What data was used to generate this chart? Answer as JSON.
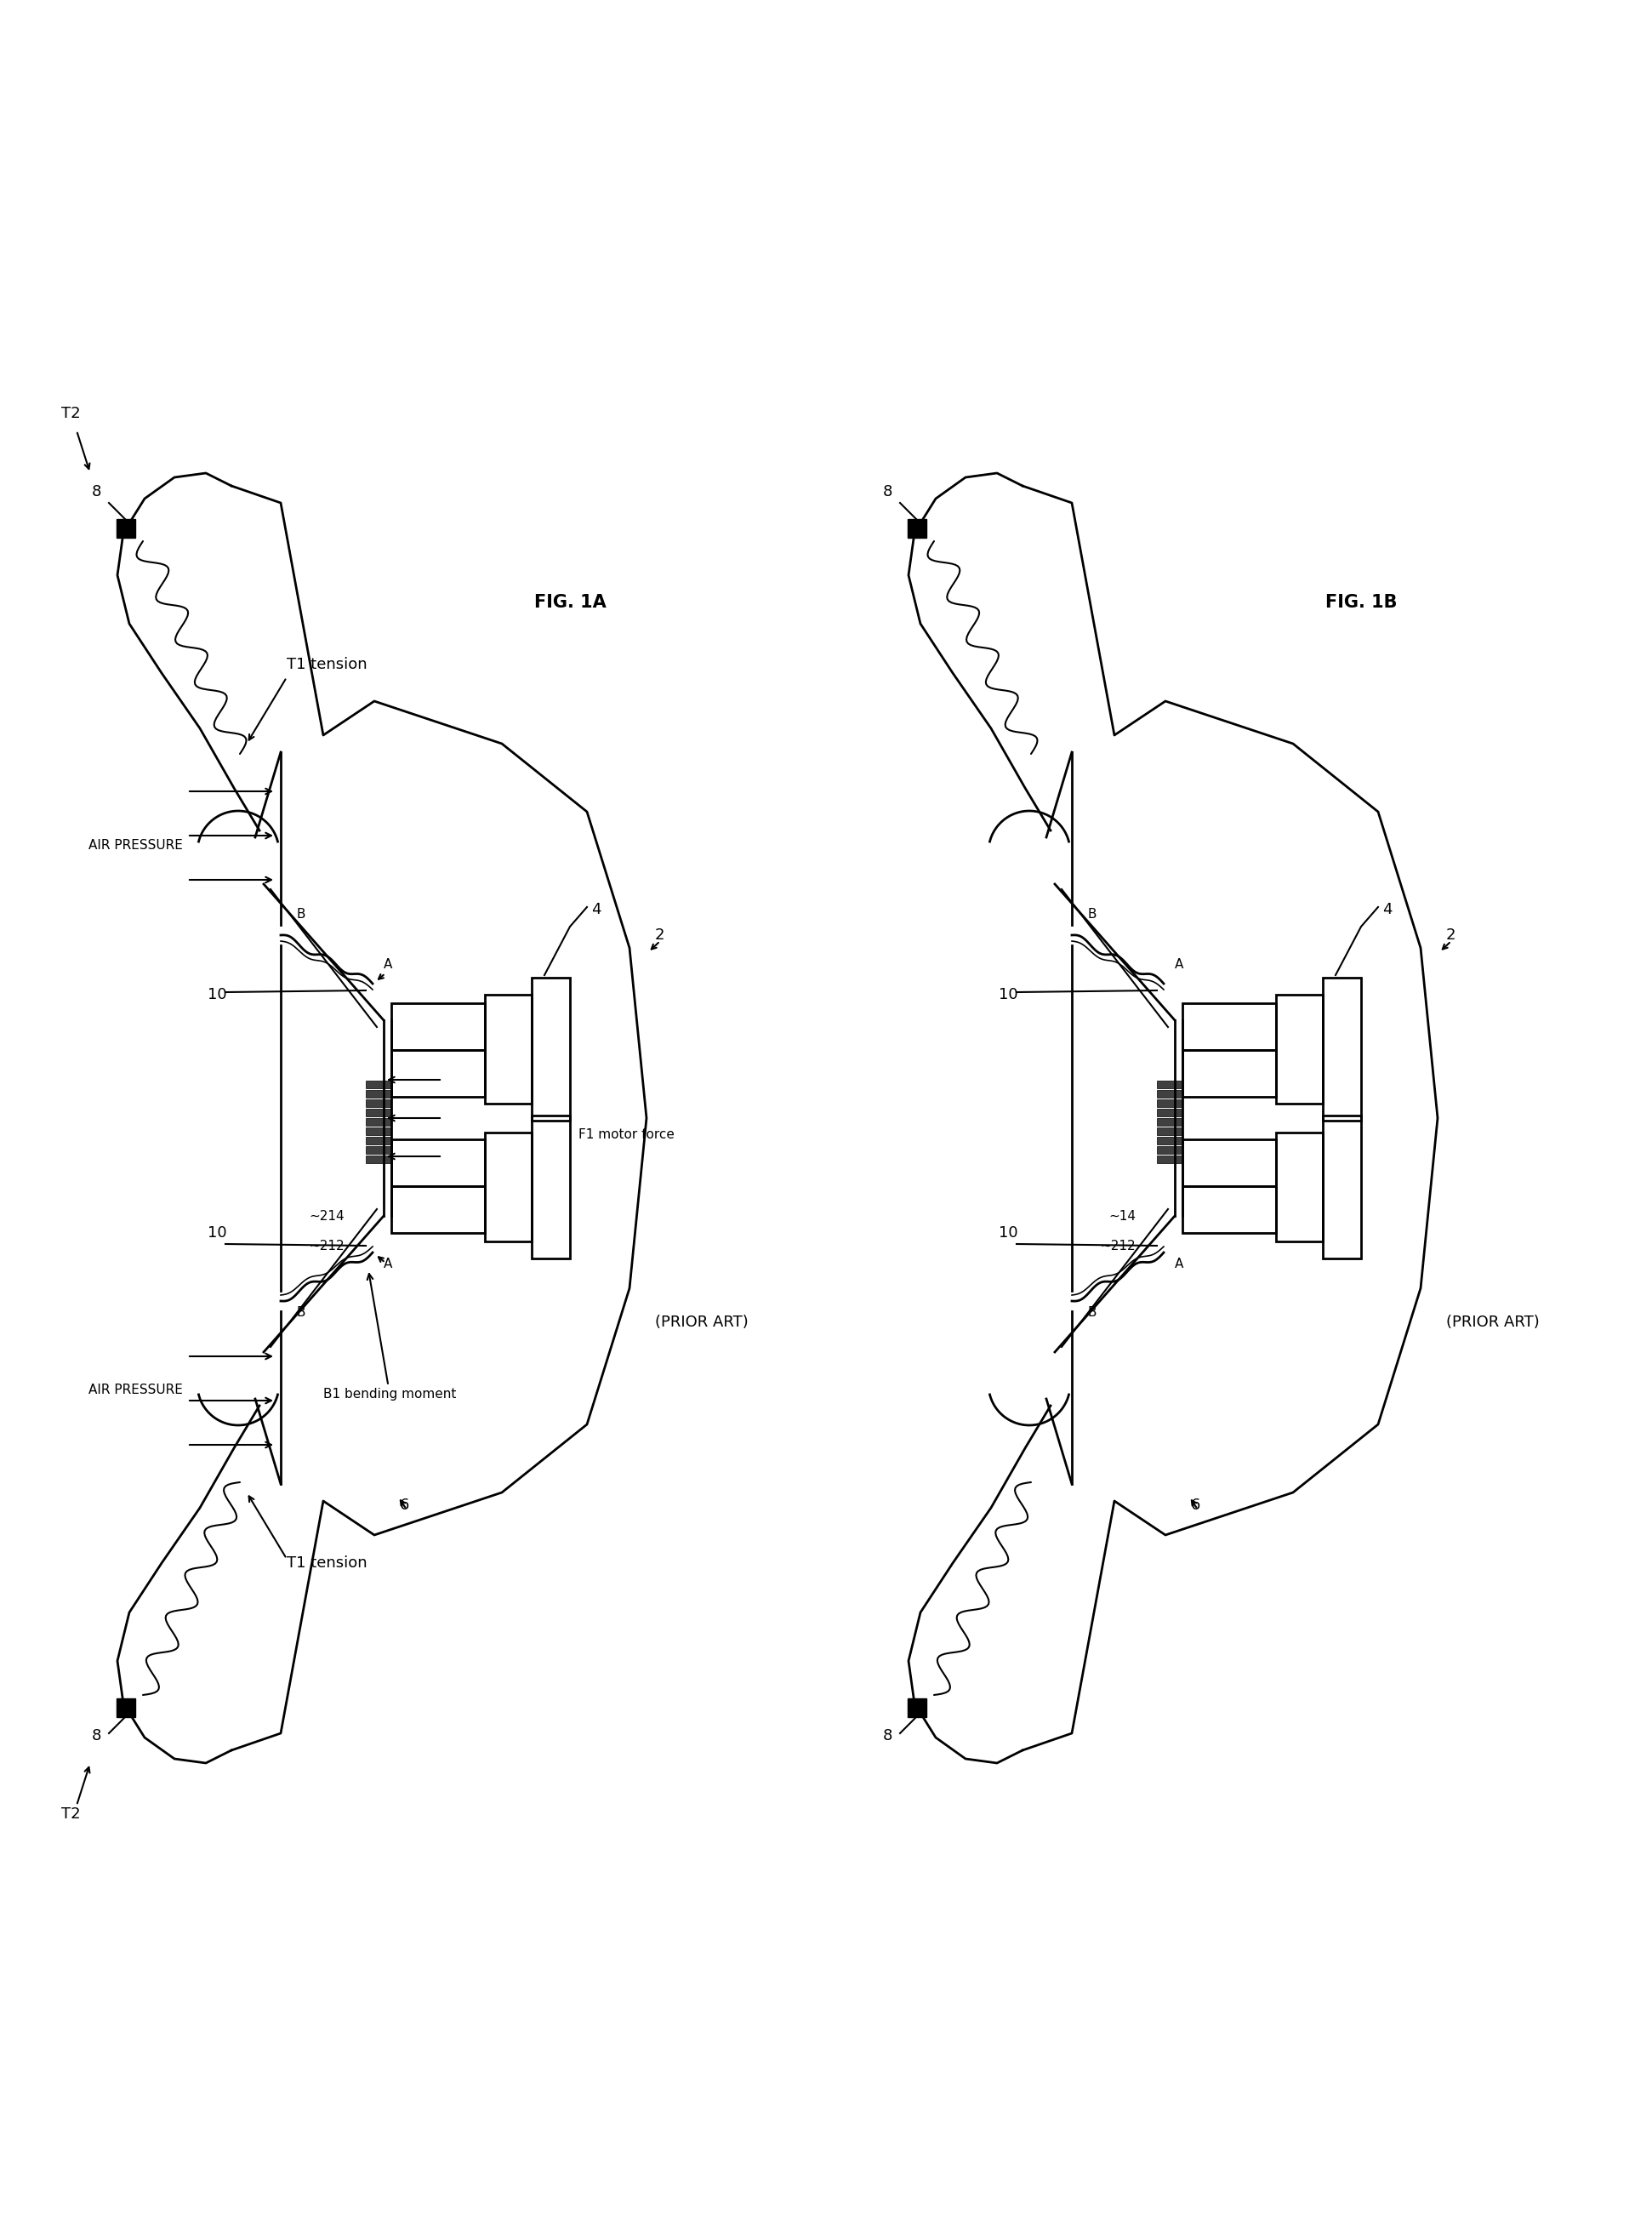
{
  "bg_color": "#ffffff",
  "line_color": "#000000",
  "fig1a_label": "FIG. 1A",
  "fig1b_label": "FIG. 1B",
  "prior_art": "(PRIOR ART)",
  "labels": {
    "8": "8",
    "10": "10",
    "6": "6",
    "4": "4",
    "2": "2",
    "212": "~212",
    "214": "~214",
    "14": "~14",
    "A": "A",
    "B": "B",
    "T1_tension": "T1 tension",
    "T2": "T2",
    "F1_motor": "F1 motor force",
    "B1_bending": "B1 bending moment",
    "AIR_PRESSURE": "AIR PRESSURE"
  },
  "font_size": 13,
  "font_size_sm": 11
}
